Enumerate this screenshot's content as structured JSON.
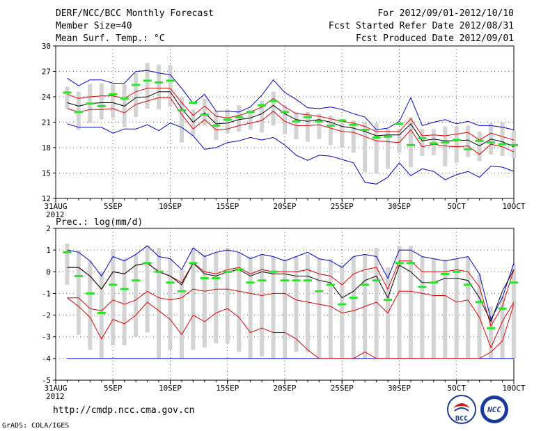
{
  "header": {
    "title": "DERF/NCC/BCC Monthly Forecast",
    "member_size": "Member Size=40",
    "variable": "Mean Surf. Temp.: °C",
    "period": "For 2012/09/01-2012/10/10",
    "started": "Fcst Started Refer Date 2012/08/31",
    "produced": "Fcst Produced Date 2012/09/01"
  },
  "footer": {
    "url": "http://cmdp.ncc.cma.gov.cn",
    "credit": "GrADS: COLA/IGES",
    "logo_bcc": "BCC",
    "logo_ncc": "NCC"
  },
  "colors": {
    "box": "#d3d3d3",
    "median": "#22e822",
    "envelope": "#0000cc",
    "quantile": "#dd0000",
    "mean": "#000000",
    "grid": "#555555"
  },
  "chart_data": [
    {
      "type": "box-ensemble",
      "title": "Mean Surf. Temp.: °C",
      "ylabel": "°C",
      "ylim": [
        12,
        30
      ],
      "yticks": [
        12,
        15,
        18,
        21,
        24,
        27,
        30
      ],
      "x_start_label": "31AUG",
      "x_year_label": "2012",
      "xticks": [
        {
          "day": 0,
          "label": "31AUG"
        },
        {
          "day": 5,
          "label": "5SEP"
        },
        {
          "day": 10,
          "label": "10SEP"
        },
        {
          "day": 15,
          "label": "15SEP"
        },
        {
          "day": 20,
          "label": "20SEP"
        },
        {
          "day": 25,
          "label": "25SEP"
        },
        {
          "day": 30,
          "label": "30SEP"
        },
        {
          "day": 35,
          "label": "5OCT"
        },
        {
          "day": 40,
          "label": "10OCT"
        }
      ],
      "days": [
        1,
        2,
        3,
        4,
        5,
        6,
        7,
        8,
        9,
        10,
        11,
        12,
        13,
        14,
        15,
        16,
        17,
        18,
        19,
        20,
        21,
        22,
        23,
        24,
        25,
        26,
        27,
        28,
        29,
        30,
        31,
        32,
        33,
        34,
        35,
        36,
        37,
        38,
        39,
        40
      ],
      "series_max": [
        26.2,
        25.3,
        26.0,
        26.0,
        25.6,
        25.6,
        27.0,
        27.1,
        26.8,
        26.6,
        25.0,
        23.2,
        24.3,
        22.3,
        22.3,
        22.2,
        22.8,
        24.2,
        26.0,
        24.5,
        23.7,
        22.7,
        22.6,
        22.8,
        22.5,
        22.0,
        21.6,
        20.1,
        20.3,
        21.1,
        23.9,
        20.6,
        21.0,
        21.3,
        20.8,
        21.1,
        20.6,
        20.6,
        20.4,
        20.1
      ],
      "series_q_high": [
        24.3,
        23.8,
        24.0,
        24.1,
        24.1,
        23.8,
        24.6,
        25.0,
        25.0,
        25.0,
        23.3,
        21.8,
        22.9,
        21.7,
        21.5,
        21.8,
        22.2,
        22.8,
        23.8,
        22.8,
        22.0,
        21.9,
        21.7,
        21.4,
        21.1,
        20.9,
        20.5,
        19.9,
        19.9,
        19.9,
        21.4,
        19.4,
        19.5,
        19.4,
        19.6,
        19.8,
        18.9,
        19.7,
        19.3,
        18.9
      ],
      "series_mean": [
        23.3,
        22.9,
        23.2,
        23.3,
        23.3,
        22.9,
        23.9,
        24.0,
        24.6,
        24.6,
        22.6,
        21.0,
        22.1,
        20.8,
        20.9,
        21.3,
        21.5,
        22.0,
        23.0,
        22.0,
        21.3,
        21.1,
        21.3,
        21.0,
        20.5,
        20.3,
        19.9,
        19.4,
        19.5,
        19.5,
        20.8,
        18.8,
        19.0,
        18.8,
        18.8,
        18.9,
        18.2,
        19.0,
        18.7,
        18.1
      ],
      "series_q_low": [
        22.6,
        22.2,
        22.5,
        22.5,
        22.6,
        22.1,
        23.1,
        23.5,
        23.9,
        23.9,
        21.9,
        20.2,
        21.3,
        20.1,
        20.2,
        20.6,
        20.9,
        21.2,
        22.3,
        21.1,
        20.6,
        20.6,
        20.7,
        20.3,
        19.9,
        19.8,
        19.3,
        18.8,
        18.7,
        18.6,
        20.1,
        18.1,
        18.4,
        18.2,
        18.1,
        18.2,
        17.2,
        18.4,
        18.1,
        17.5
      ],
      "series_min": [
        20.8,
        20.4,
        20.4,
        20.4,
        19.7,
        20.2,
        20.2,
        20.7,
        20.0,
        20.9,
        20.4,
        19.4,
        17.8,
        18.0,
        18.6,
        18.8,
        19.2,
        18.9,
        19.2,
        18.3,
        17.1,
        16.5,
        17.1,
        17.0,
        16.6,
        16.2,
        13.9,
        13.7,
        14.5,
        16.2,
        14.7,
        15.5,
        15.2,
        14.2,
        14.8,
        15.2,
        14.5,
        15.8,
        15.7,
        15.2
      ],
      "box_top": [
        25.2,
        24.6,
        25.5,
        25.6,
        25.5,
        25.5,
        26.8,
        28.0,
        27.8,
        27.7,
        24.0,
        22.5,
        23.8,
        22.3,
        22.5,
        23.0,
        22.5,
        23.5,
        24.6,
        23.0,
        22.2,
        22.2,
        22.0,
        21.8,
        21.4,
        21.2,
        21.0,
        20.9,
        20.2,
        20.2,
        21.6,
        20.2,
        20.2,
        20.5,
        20.5,
        20.6,
        19.9,
        20.9,
        21.0,
        20.0
      ],
      "box_bottom": [
        22.6,
        20.1,
        20.9,
        21.3,
        21.5,
        20.4,
        21.6,
        22.6,
        22.5,
        22.8,
        18.6,
        19.4,
        20.6,
        18.9,
        19.7,
        19.9,
        20.1,
        19.8,
        20.6,
        19.6,
        19.0,
        18.7,
        19.0,
        18.3,
        18.0,
        17.4,
        15.1,
        14.9,
        15.5,
        17.4,
        15.7,
        17.0,
        17.1,
        15.8,
        16.2,
        16.9,
        16.4,
        17.2,
        17.0,
        16.8
      ],
      "median": [
        24.5,
        22.2,
        23.2,
        22.9,
        24.3,
        23.8,
        25.4,
        25.9,
        25.7,
        25.9,
        22.4,
        23.3,
        21.9,
        20.6,
        21.3,
        21.6,
        22.2,
        23.0,
        23.5,
        22.2,
        21.1,
        21.6,
        21.1,
        20.6,
        21.2,
        20.7,
        20.1,
        19.2,
        19.3,
        20.8,
        18.3,
        19.1,
        18.5,
        18.6,
        18.9,
        17.8,
        18.8,
        18.6,
        18.4,
        18.3
      ]
    },
    {
      "type": "box-ensemble",
      "title": "Prec.: log(mm/d)",
      "ylabel": "log(mm/d)",
      "ylim": [
        -5,
        2
      ],
      "yticks": [
        -5,
        -4,
        -3,
        -2,
        -1,
        0,
        1,
        2
      ],
      "x_start_label": "31AUG",
      "x_year_label": "2012",
      "xticks": [
        {
          "day": 0,
          "label": "31AUG"
        },
        {
          "day": 5,
          "label": "5SEP"
        },
        {
          "day": 10,
          "label": "10SEP"
        },
        {
          "day": 15,
          "label": "15SEP"
        },
        {
          "day": 20,
          "label": "20SEP"
        },
        {
          "day": 25,
          "label": "25SEP"
        },
        {
          "day": 30,
          "label": "30SEP"
        },
        {
          "day": 35,
          "label": "5OCT"
        },
        {
          "day": 40,
          "label": "10OCT"
        }
      ],
      "days": [
        1,
        2,
        3,
        4,
        5,
        6,
        7,
        8,
        9,
        10,
        11,
        12,
        13,
        14,
        15,
        16,
        17,
        18,
        19,
        20,
        21,
        22,
        23,
        24,
        25,
        26,
        27,
        28,
        29,
        30,
        31,
        32,
        33,
        34,
        35,
        36,
        37,
        38,
        39,
        40
      ],
      "series_max": [
        1.0,
        0.9,
        0.5,
        -0.2,
        0.7,
        0.5,
        0.8,
        1.2,
        0.7,
        0.6,
        0.1,
        1.1,
        0.7,
        0.9,
        1.0,
        0.9,
        0.6,
        0.8,
        0.7,
        0.5,
        0.7,
        0.9,
        0.6,
        0.5,
        0.2,
        0.7,
        0.8,
        0.7,
        -0.3,
        1.0,
        1.0,
        0.7,
        0.6,
        0.5,
        0.6,
        0.7,
        -0.1,
        -2.2,
        -1.2,
        0.4
      ],
      "series_q_high": [
        0.2,
        0.2,
        -0.2,
        -0.8,
        0.0,
        -0.1,
        0.3,
        0.4,
        0.0,
        -0.2,
        -0.5,
        0.4,
        0.0,
        -0.1,
        0.1,
        0.2,
        -0.1,
        0.1,
        0.0,
        0.0,
        0.0,
        0.1,
        -0.1,
        -0.2,
        -0.6,
        -0.1,
        0.1,
        0.2,
        -0.8,
        0.5,
        0.5,
        0.0,
        0.0,
        0.0,
        0.1,
        0.0,
        -0.7,
        -2.5,
        -1.6,
        0.1
      ],
      "series_mean": [
        0.2,
        0.2,
        -0.2,
        -0.8,
        0.0,
        -0.1,
        0.3,
        0.4,
        0.0,
        -0.2,
        -0.6,
        0.4,
        -0.1,
        -0.2,
        0.0,
        0.1,
        -0.2,
        0.0,
        -0.1,
        -0.1,
        -0.2,
        -0.2,
        -0.4,
        -0.5,
        -1.2,
        -0.9,
        -0.4,
        -0.2,
        -1.2,
        0.3,
        0.0,
        -0.5,
        -0.5,
        -0.3,
        -0.3,
        -0.4,
        -1.2,
        -2.3,
        -0.9,
        0.1
      ],
      "series_q_low": [
        -1.2,
        -1.2,
        -1.7,
        -1.8,
        -1.3,
        -1.5,
        -1.3,
        -0.9,
        -1.2,
        -1.3,
        -1.2,
        -0.8,
        -0.9,
        -0.8,
        -0.8,
        -0.9,
        -1.0,
        -1.1,
        -1.0,
        -1.0,
        -1.3,
        -1.4,
        -1.5,
        -1.6,
        -1.9,
        -1.8,
        -1.6,
        -1.4,
        -1.9,
        -0.9,
        -0.9,
        -1.0,
        -1.1,
        -1.1,
        -1.4,
        -1.3,
        -2.1,
        -3.5,
        -2.3,
        -1.4
      ],
      "series_low2": [
        -1.2,
        -1.6,
        -2.1,
        -3.1,
        -2.2,
        -2.4,
        -2.0,
        -1.4,
        -1.8,
        -2.2,
        -2.9,
        -2.0,
        -2.3,
        -1.9,
        -1.7,
        -2.1,
        -2.8,
        -2.6,
        -2.8,
        -2.8,
        -3.1,
        -3.6,
        -4.0,
        -4.0,
        -4.0,
        -4.0,
        -3.7,
        -4.0,
        -4.0,
        -4.0,
        -4.0,
        -4.0,
        -4.0,
        -4.0,
        -4.0,
        -4.0,
        -4.0,
        -3.7,
        -3.2,
        -1.5
      ],
      "series_min": [
        -4.0,
        -4.0,
        -4.0,
        -4.0,
        -4.0,
        -4.0,
        -4.0,
        -4.0,
        -4.0,
        -4.0,
        -4.0,
        -4.0,
        -4.0,
        -4.0,
        -4.0,
        -4.0,
        -4.0,
        -4.0,
        -4.0,
        -4.0,
        -4.0,
        -4.0,
        -4.0,
        -4.0,
        -4.0,
        -4.0,
        -4.0,
        -4.0,
        -4.0,
        -4.0,
        -4.0,
        -4.0,
        -4.0,
        -4.0,
        -4.0,
        -4.0,
        -4.0,
        -4.0,
        -4.0,
        -4.0
      ],
      "box_top": [
        1.3,
        1.0,
        0.5,
        0.0,
        1.0,
        0.6,
        0.8,
        1.2,
        1.1,
        0.6,
        0.1,
        1.1,
        0.8,
        0.9,
        1.1,
        0.9,
        0.7,
        0.8,
        0.7,
        0.6,
        0.7,
        0.8,
        0.6,
        0.6,
        0.3,
        0.7,
        0.8,
        1.1,
        0.2,
        1.2,
        1.2,
        0.7,
        0.6,
        0.5,
        0.6,
        0.7,
        -0.1,
        -1.6,
        -1.1,
        0.3
      ],
      "box_bottom": [
        -0.6,
        -2.9,
        -3.6,
        -4.0,
        -3.4,
        -3.4,
        -3.0,
        -2.8,
        -4.0,
        -3.6,
        -4.0,
        -3.6,
        -3.5,
        -3.3,
        -3.3,
        -3.7,
        -4.0,
        -3.9,
        -4.0,
        -4.0,
        -3.7,
        -3.7,
        -4.0,
        -4.0,
        -4.0,
        -4.0,
        -4.0,
        -4.0,
        -4.0,
        -4.0,
        -4.0,
        -4.0,
        -4.0,
        -4.0,
        -4.0,
        -4.0,
        -4.0,
        -4.0,
        -4.0,
        -4.0
      ],
      "median": [
        0.9,
        -0.2,
        -1.0,
        -1.9,
        -0.6,
        -0.8,
        -0.4,
        0.4,
        0.0,
        -0.5,
        -0.9,
        0.4,
        -0.3,
        -0.3,
        0.0,
        0.1,
        -0.5,
        -0.4,
        0.0,
        -0.4,
        -0.4,
        -0.4,
        -0.9,
        -0.6,
        -1.5,
        -1.2,
        -0.6,
        -0.4,
        -1.3,
        0.4,
        0.4,
        -0.7,
        -0.5,
        -0.1,
        0.0,
        -0.6,
        -1.4,
        -2.6,
        -1.7,
        -0.5
      ]
    }
  ]
}
